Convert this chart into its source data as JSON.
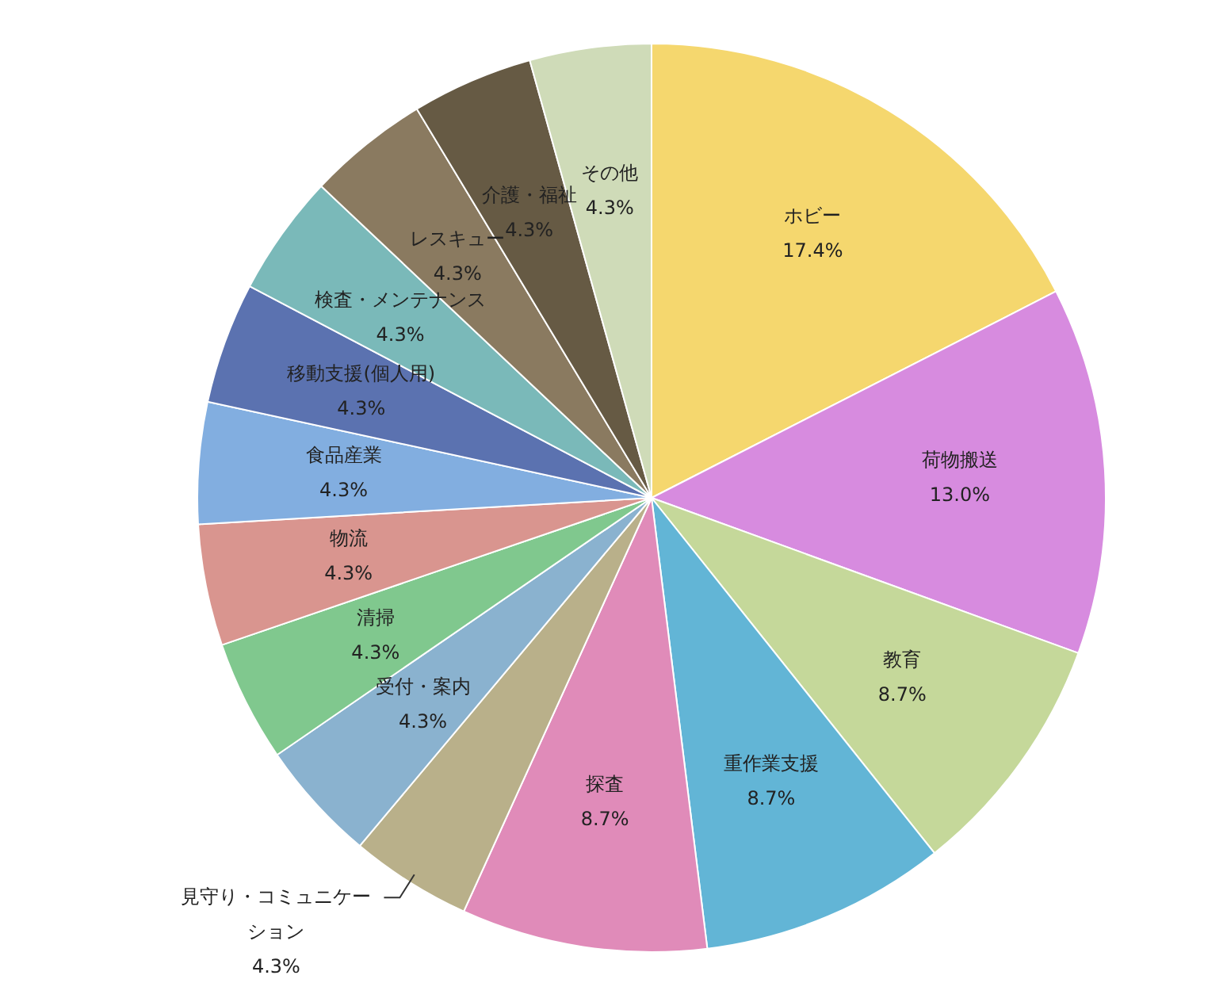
{
  "chart_data": {
    "type": "pie",
    "categories": [
      "ホビー",
      "荷物搬送",
      "教育",
      "重作業支援",
      "探査",
      "見守り・コミュニケーション",
      "受付・案内",
      "清掃",
      "物流",
      "食品産業",
      "移動支援(個人用)",
      "検査・メンテナンス",
      "レスキュー",
      "介護・福祉",
      "その他"
    ],
    "values": [
      17.4,
      13.0,
      8.7,
      8.7,
      8.7,
      4.3,
      4.3,
      4.3,
      4.3,
      4.3,
      4.3,
      4.3,
      4.3,
      4.3,
      4.3
    ],
    "value_labels": [
      "17.4%",
      "13.0%",
      "8.7%",
      "8.7%",
      "8.7%",
      "4.3%",
      "4.3%",
      "4.3%",
      "4.3%",
      "4.3%",
      "4.3%",
      "4.3%",
      "4.3%",
      "4.3%",
      "4.3%"
    ],
    "colors": [
      "#f5d76e",
      "#d78bdf",
      "#c5d89a",
      "#62b5d6",
      "#e08bb9",
      "#b9b08a",
      "#8ab2cf",
      "#80c88e",
      "#d9958f",
      "#82aee0",
      "#5b72b0",
      "#7ab9b9",
      "#8a7a60",
      "#665a44",
      "#cfdbb8"
    ],
    "legend": false
  }
}
